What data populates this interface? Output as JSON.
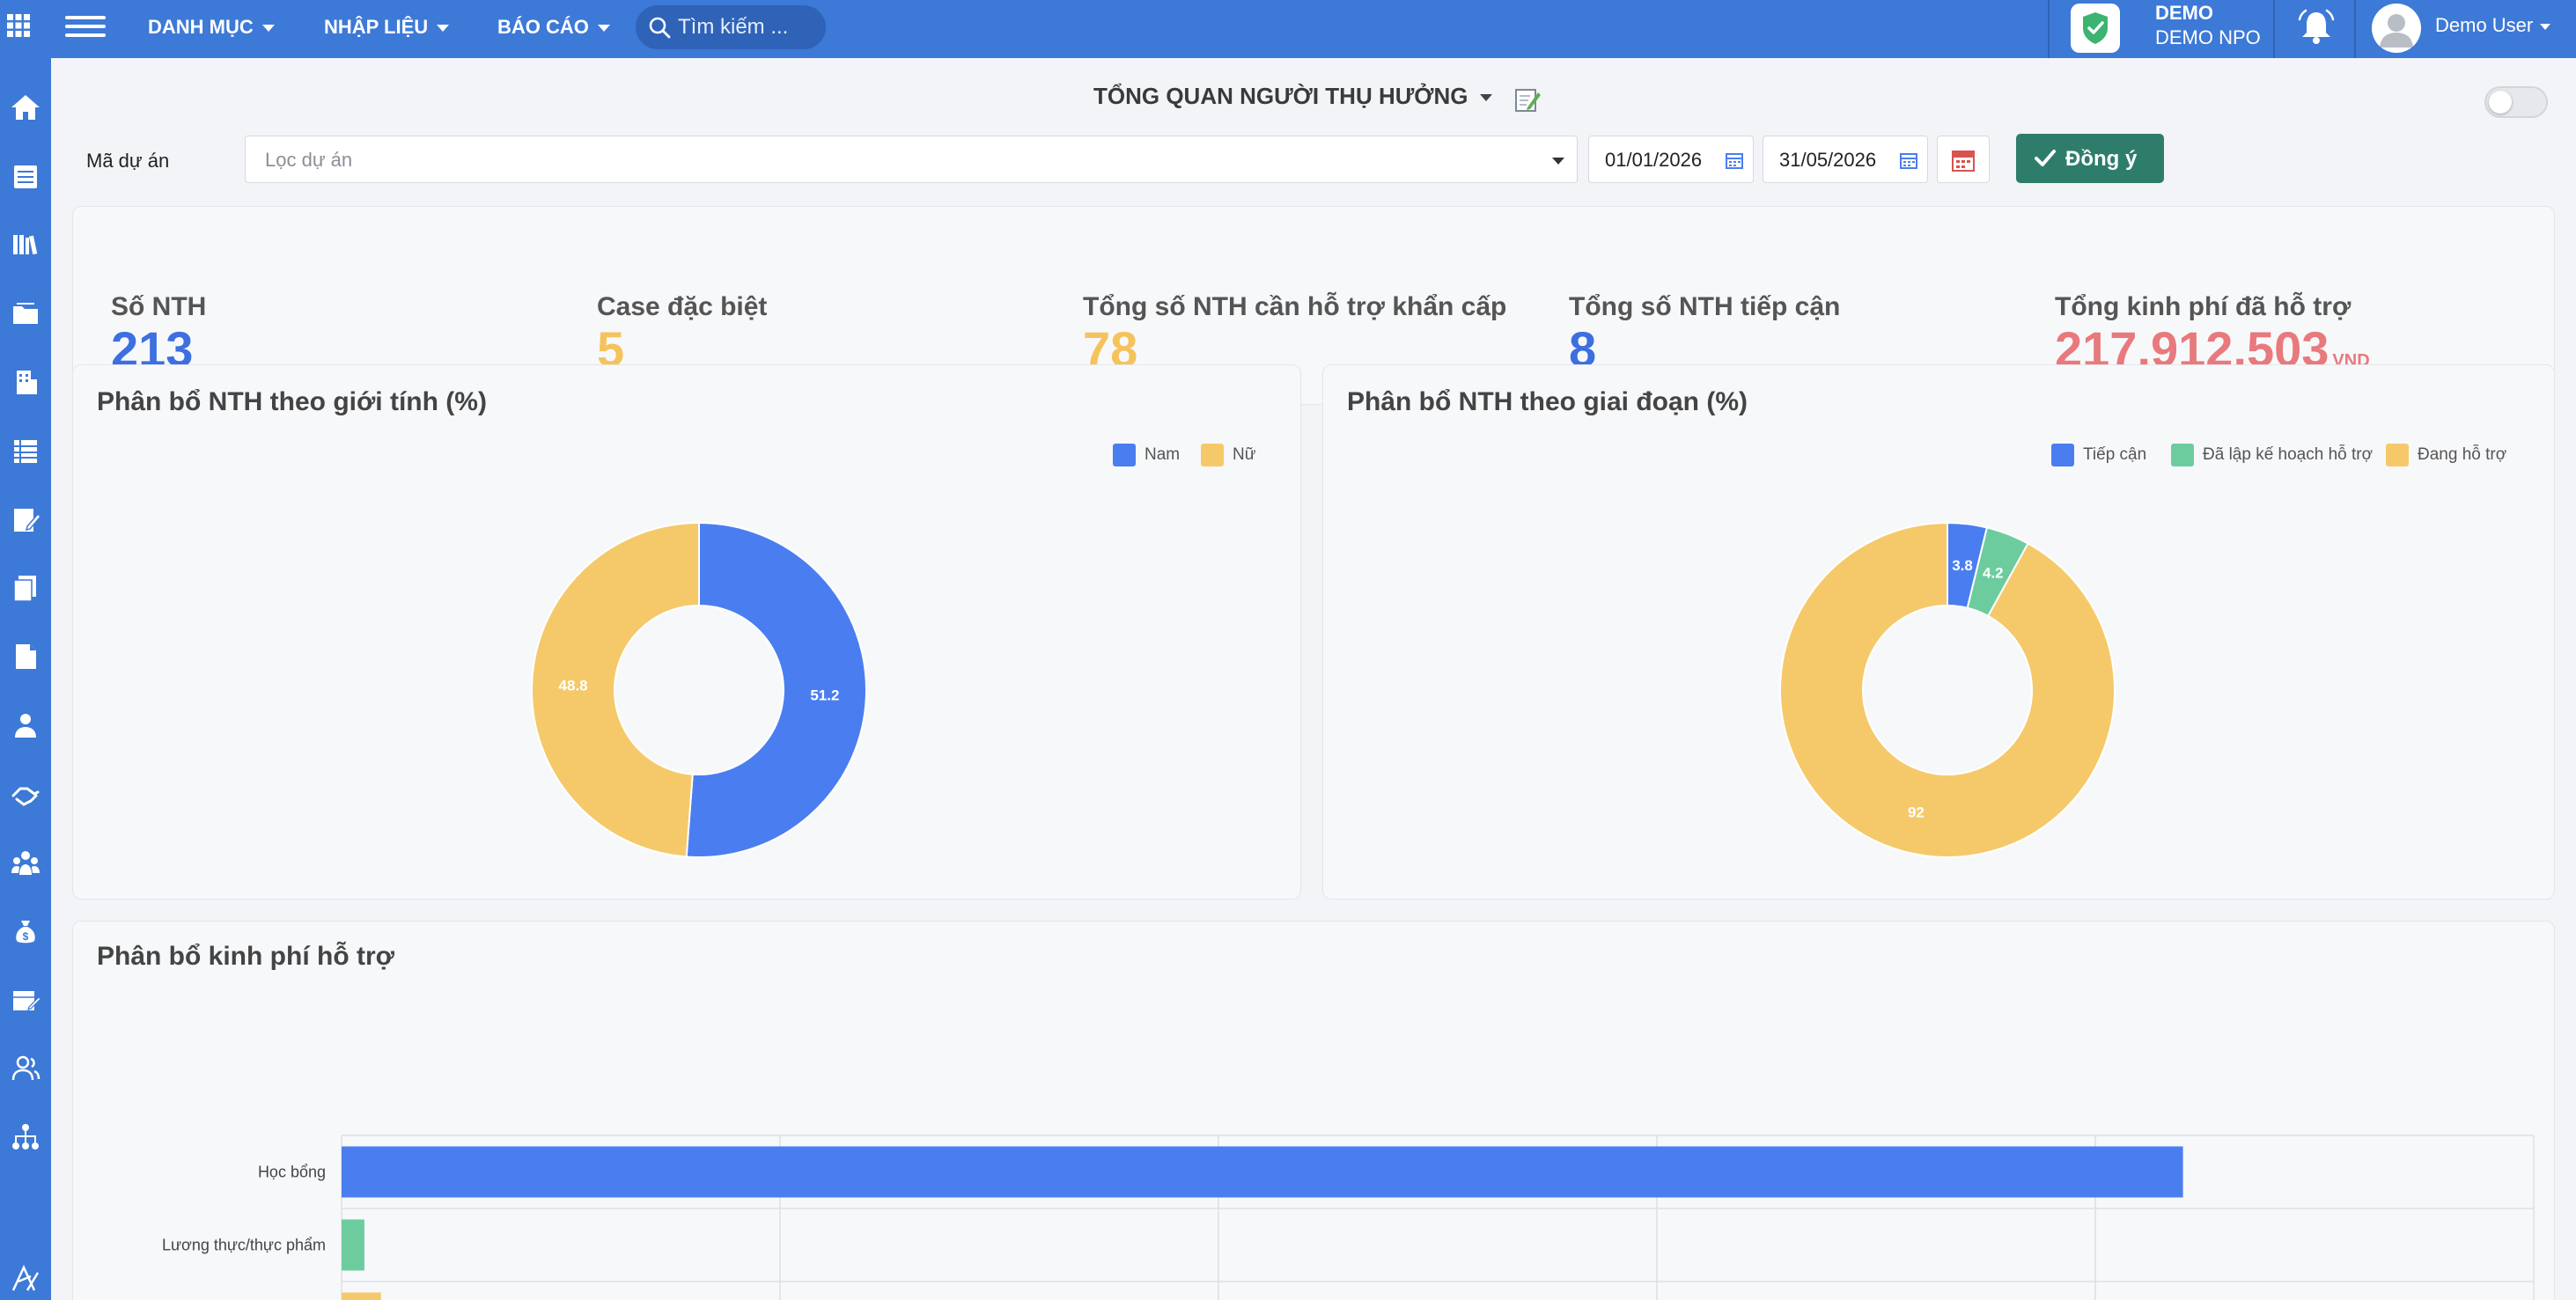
{
  "topbar": {
    "nav": [
      {
        "label": "DANH MỤC"
      },
      {
        "label": "NHẬP LIỆU"
      },
      {
        "label": "BÁO CÁO"
      }
    ],
    "search_placeholder": "Tìm kiếm ...",
    "org_name": "DEMO",
    "org_sub": "DEMO NPO",
    "user_name": "Demo User"
  },
  "page": {
    "title": "TỔNG QUAN NGƯỜI THỤ HƯỞNG"
  },
  "filters": {
    "project_label": "Mã dự án",
    "project_placeholder": "Lọc dự án",
    "date_from": "01/01/2026",
    "date_to": "31/05/2026",
    "ok_label": "Đồng ý"
  },
  "stats": [
    {
      "label": "Số NTH",
      "value": "213",
      "color": "#3d6fe0"
    },
    {
      "label": "Case đặc biệt",
      "value": "5",
      "color": "#f5c35b"
    },
    {
      "label": "Tổng số NTH cần hỗ trợ khẩn cấp",
      "value": "78",
      "color": "#f5c35b"
    },
    {
      "label": "Tổng số NTH tiếp cận",
      "value": "8",
      "color": "#3d6fe0"
    },
    {
      "label": "Tổng kinh phí đã hỗ trợ",
      "value": "217,912,503",
      "unit": "VND",
      "color": "#e8797d"
    }
  ],
  "chart_data": [
    {
      "type": "pie",
      "title": "Phân bổ NTH theo giới tính (%)",
      "labels": [
        "Nam",
        "Nữ"
      ],
      "values": [
        51.2,
        48.8
      ],
      "colors": [
        "#4a7ef0",
        "#f5c96a"
      ],
      "legend": "top-right",
      "donut": true
    },
    {
      "type": "pie",
      "title": "Phân bổ NTH theo giai đoạn (%)",
      "labels": [
        "Tiếp cận",
        "Đã lập kế hoạch hỗ trợ",
        "Đang hỗ trợ"
      ],
      "values": [
        3.8,
        4.2,
        92
      ],
      "colors": [
        "#4a7ef0",
        "#6dcc9e",
        "#f5c96a"
      ],
      "legend": "top-right",
      "donut": true
    },
    {
      "type": "bar",
      "orientation": "horizontal",
      "title": "Phân bổ kinh phí hỗ trợ",
      "categories": [
        "Học bổng",
        "Lương thực/thực phẩm",
        "DV đồng hành"
      ],
      "values": [
        210000000,
        2600000,
        4500000
      ],
      "colors": [
        "#4a7ef0",
        "#6dcc9e",
        "#f5c96a"
      ],
      "xlim": [
        0,
        250000000
      ],
      "grid": true
    }
  ],
  "icons": {
    "sidebar": [
      "home-icon",
      "list-icon",
      "library-icon",
      "folder-icon",
      "building-icon",
      "table-icon",
      "form-edit-icon",
      "documents-icon",
      "file-icon",
      "person-icon",
      "handshake-icon",
      "group-icon",
      "money-bag-icon",
      "calendar-edit-icon",
      "users-icon",
      "org-chart-icon",
      "app-logo-icon"
    ]
  }
}
